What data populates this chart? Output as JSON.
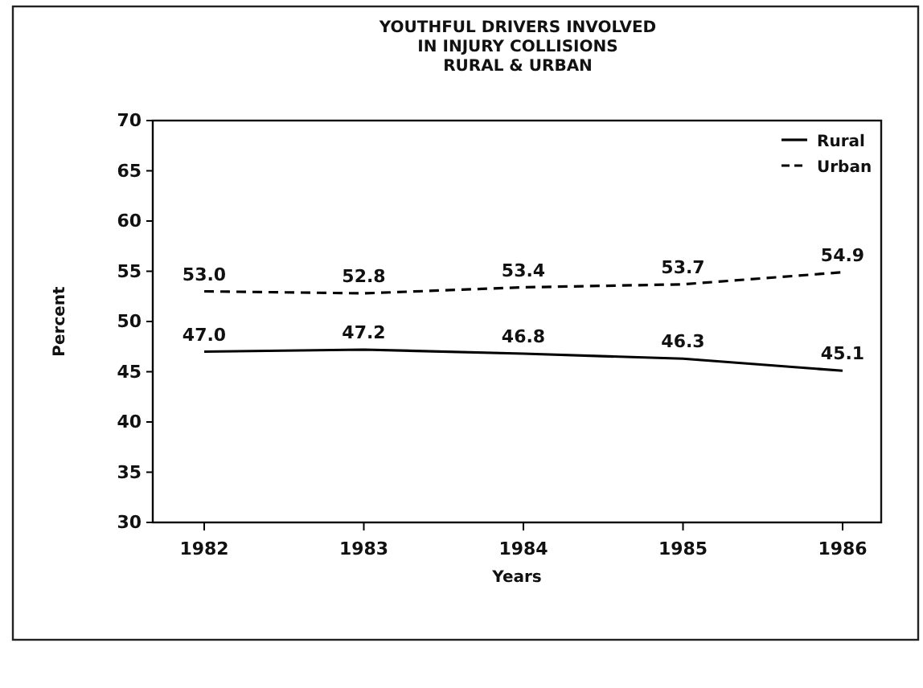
{
  "chart_data": {
    "type": "line",
    "title": "YOUTHFUL DRIVERS INVOLVED\nIN INJURY COLLISIONS\nRURAL & URBAN",
    "xlabel": "Years",
    "ylabel": "Percent",
    "categories": [
      "1982",
      "1983",
      "1984",
      "1985",
      "1986"
    ],
    "series": [
      {
        "name": "Rural",
        "color": "#000000",
        "line_style": "solid",
        "values": [
          47.0,
          47.2,
          46.8,
          46.3,
          45.1
        ],
        "value_labels": [
          "47.0",
          "47.2",
          "46.8",
          "46.3",
          "45.1"
        ]
      },
      {
        "name": "Urban",
        "color": "#000000",
        "line_style": "dashed",
        "values": [
          53.0,
          52.8,
          53.4,
          53.7,
          54.9
        ],
        "value_labels": [
          "53.0",
          "52.8",
          "53.4",
          "53.7",
          "54.9"
        ]
      }
    ],
    "ylim": [
      30,
      70
    ],
    "yticks": [
      30,
      35,
      40,
      45,
      50,
      55,
      60,
      65,
      70
    ],
    "grid": false,
    "legend": "top right",
    "marker": "none"
  }
}
